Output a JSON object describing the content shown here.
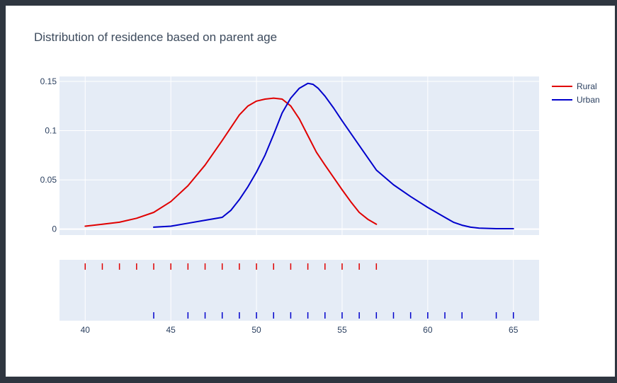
{
  "chart_data": {
    "type": "line",
    "title": "Distribution of residence based on parent age",
    "xlabel": "",
    "ylabel": "",
    "xlim": [
      38.5,
      66.5
    ],
    "ylim": [
      -0.006,
      0.155
    ],
    "x_ticks": [
      40,
      45,
      50,
      55,
      60,
      65
    ],
    "y_ticks": [
      0,
      0.05,
      0.1,
      0.15
    ],
    "y_tick_labels": [
      "0",
      "0.05",
      "0.1",
      "0.15"
    ],
    "grid": true,
    "legend_position": "top-right",
    "colors": {
      "Rural": "#e00000",
      "Urban": "#0000cc"
    },
    "series": [
      {
        "name": "Rural",
        "x": [
          40,
          41,
          42,
          43,
          44,
          45,
          46,
          47,
          48,
          49,
          49.5,
          50,
          50.5,
          51,
          51.5,
          52,
          52.5,
          53,
          53.5,
          54,
          55,
          55.5,
          56,
          56.5,
          57
        ],
        "y": [
          0.003,
          0.005,
          0.007,
          0.011,
          0.017,
          0.028,
          0.044,
          0.065,
          0.09,
          0.116,
          0.125,
          0.13,
          0.132,
          0.133,
          0.132,
          0.125,
          0.112,
          0.095,
          0.078,
          0.065,
          0.04,
          0.028,
          0.017,
          0.01,
          0.005
        ]
      },
      {
        "name": "Urban",
        "x": [
          44,
          45,
          46,
          47,
          48,
          48.5,
          49,
          49.5,
          50,
          50.5,
          51,
          51.5,
          52,
          52.5,
          53,
          53.3,
          53.6,
          54,
          54.5,
          55,
          56,
          57,
          58,
          59,
          60,
          61,
          61.5,
          62,
          62.5,
          63,
          64,
          65
        ],
        "y": [
          0.002,
          0.003,
          0.006,
          0.009,
          0.012,
          0.019,
          0.03,
          0.043,
          0.058,
          0.075,
          0.096,
          0.118,
          0.133,
          0.143,
          0.148,
          0.147,
          0.143,
          0.135,
          0.123,
          0.11,
          0.085,
          0.06,
          0.045,
          0.033,
          0.022,
          0.012,
          0.007,
          0.004,
          0.002,
          0.001,
          0.0005,
          0.0005
        ]
      }
    ],
    "rug": [
      {
        "name": "Rural",
        "x": [
          40,
          41,
          42,
          43,
          44,
          45,
          46,
          47,
          48,
          49,
          50,
          51,
          52,
          53,
          54,
          55,
          56,
          57
        ]
      },
      {
        "name": "Urban",
        "x": [
          44,
          46,
          47,
          48,
          49,
          50,
          51,
          52,
          53,
          54,
          55,
          56,
          57,
          58,
          59,
          60,
          61,
          62,
          64,
          65
        ]
      }
    ]
  }
}
